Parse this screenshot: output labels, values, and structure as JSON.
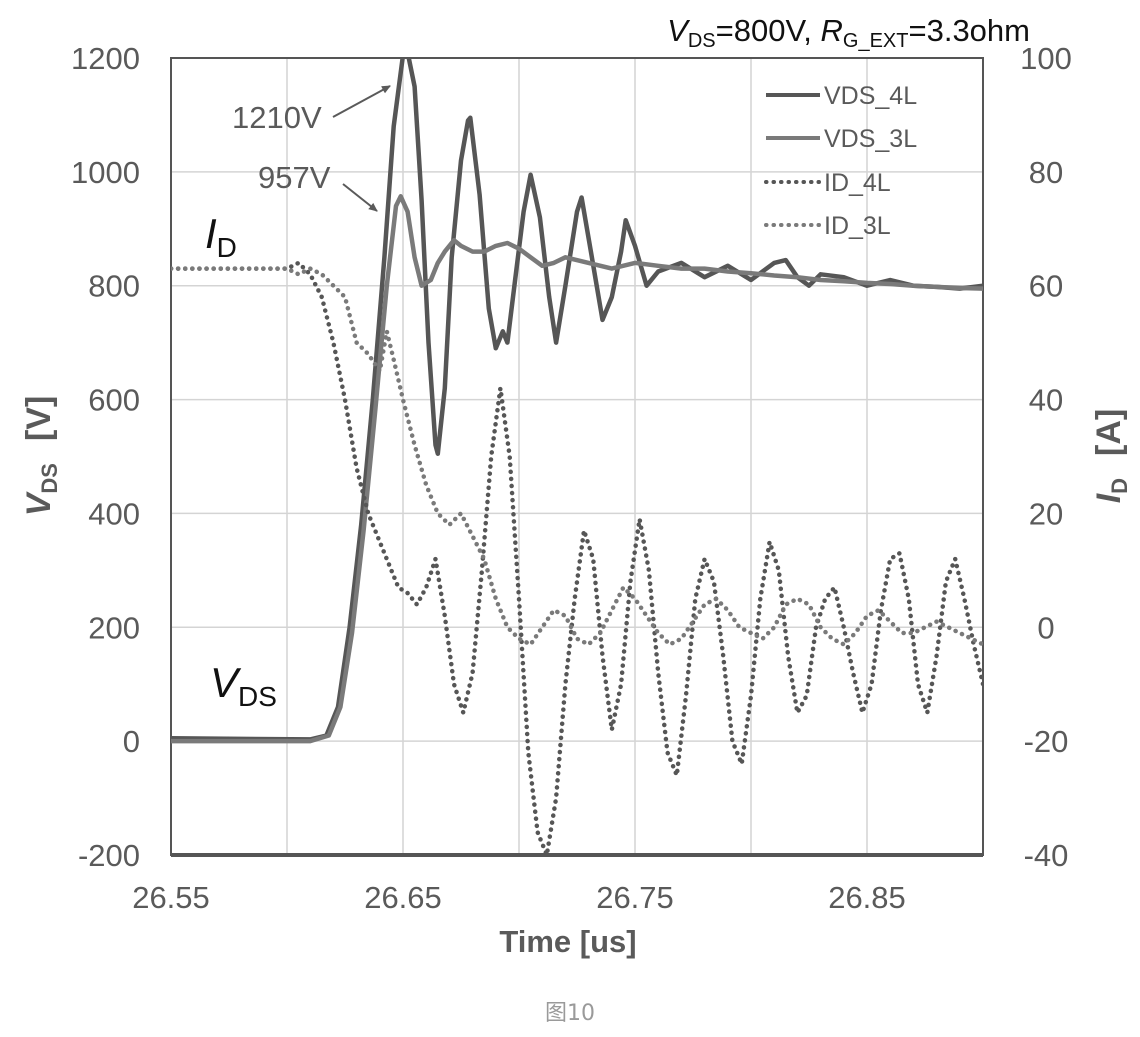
{
  "caption": "图10",
  "chart_data": {
    "type": "line",
    "title": {
      "vds_sym": "V",
      "vds_sub": "DS",
      "vds_val": "=800V, ",
      "rg_sym": "R",
      "rg_sub": "G_EXT",
      "rg_val": "=3.3ohm"
    },
    "xlabel": "Time [us]",
    "ylabel_left": {
      "sym": "V",
      "sub": "DS",
      "unit": "[V]"
    },
    "ylabel_right": {
      "sym": "I",
      "sub": "D",
      "unit": "[A]"
    },
    "xlim": [
      26.55,
      26.9
    ],
    "ylim_left": [
      -200,
      1200
    ],
    "ylim_right": [
      -40,
      100
    ],
    "x_ticks": [
      "26.55",
      "26.65",
      "26.75",
      "26.85"
    ],
    "x_tick_values": [
      26.55,
      26.65,
      26.75,
      26.85
    ],
    "x_grid": [
      26.55,
      26.6,
      26.65,
      26.7,
      26.75,
      26.8,
      26.85,
      26.9
    ],
    "y_ticks_left": [
      "-200",
      "0",
      "200",
      "400",
      "600",
      "800",
      "1000",
      "1200"
    ],
    "y_ticks_right": [
      "-40",
      "-20",
      "0",
      "20",
      "40",
      "60",
      "80",
      "100"
    ],
    "y_tick_values_left": [
      -200,
      0,
      200,
      400,
      600,
      800,
      1000,
      1200
    ],
    "grid": true,
    "legend_position": "top-right",
    "legend": [
      {
        "name": "VDS_4L",
        "style": "solid",
        "color": "#565656"
      },
      {
        "name": "VDS_3L",
        "style": "solid",
        "color": "#7a7a7a"
      },
      {
        "name": "ID_4L",
        "style": "dotted",
        "color": "#565656"
      },
      {
        "name": "ID_3L",
        "style": "dotted",
        "color": "#7a7a7a"
      }
    ],
    "annotations": [
      {
        "text": "1210V",
        "x": 26.651,
        "y": 1210
      },
      {
        "text": "957V",
        "x": 26.647,
        "y": 957
      }
    ],
    "curve_labels": {
      "id_sym": "I",
      "id_sub": "D",
      "vds_sym": "V",
      "vds_sub": "DS"
    },
    "series": [
      {
        "name": "VDS_4L",
        "axis": "left",
        "style": "solid",
        "color": "#565656",
        "points": [
          [
            26.55,
            5
          ],
          [
            26.61,
            3
          ],
          [
            26.617,
            10
          ],
          [
            26.622,
            60
          ],
          [
            26.627,
            200
          ],
          [
            26.632,
            380
          ],
          [
            26.637,
            600
          ],
          [
            26.642,
            850
          ],
          [
            26.646,
            1080
          ],
          [
            26.65,
            1205
          ],
          [
            26.652,
            1210
          ],
          [
            26.655,
            1150
          ],
          [
            26.658,
            950
          ],
          [
            26.661,
            700
          ],
          [
            26.664,
            520
          ],
          [
            26.665,
            505
          ],
          [
            26.668,
            620
          ],
          [
            26.671,
            850
          ],
          [
            26.675,
            1020
          ],
          [
            26.678,
            1090
          ],
          [
            26.679,
            1095
          ],
          [
            26.683,
            960
          ],
          [
            26.687,
            760
          ],
          [
            26.69,
            690
          ],
          [
            26.693,
            720
          ],
          [
            26.695,
            700
          ],
          [
            26.698,
            800
          ],
          [
            26.702,
            930
          ],
          [
            26.705,
            995
          ],
          [
            26.709,
            920
          ],
          [
            26.713,
            780
          ],
          [
            26.716,
            700
          ],
          [
            26.72,
            800
          ],
          [
            26.725,
            930
          ],
          [
            26.727,
            955
          ],
          [
            26.731,
            860
          ],
          [
            26.736,
            740
          ],
          [
            26.74,
            780
          ],
          [
            26.744,
            860
          ],
          [
            26.746,
            915
          ],
          [
            26.75,
            870
          ],
          [
            26.755,
            800
          ],
          [
            26.76,
            825
          ],
          [
            26.77,
            840
          ],
          [
            26.78,
            815
          ],
          [
            26.79,
            835
          ],
          [
            26.8,
            810
          ],
          [
            26.81,
            840
          ],
          [
            26.815,
            845
          ],
          [
            26.82,
            815
          ],
          [
            26.825,
            800
          ],
          [
            26.83,
            820
          ],
          [
            26.84,
            815
          ],
          [
            26.85,
            800
          ],
          [
            26.86,
            810
          ],
          [
            26.87,
            800
          ],
          [
            26.88,
            798
          ],
          [
            26.89,
            795
          ],
          [
            26.9,
            800
          ]
        ]
      },
      {
        "name": "VDS_3L",
        "axis": "left",
        "style": "solid",
        "color": "#7a7a7a",
        "points": [
          [
            26.55,
            0
          ],
          [
            26.61,
            0
          ],
          [
            26.618,
            10
          ],
          [
            26.623,
            60
          ],
          [
            26.628,
            190
          ],
          [
            26.633,
            370
          ],
          [
            26.638,
            580
          ],
          [
            26.643,
            800
          ],
          [
            26.647,
            940
          ],
          [
            26.649,
            957
          ],
          [
            26.652,
            930
          ],
          [
            26.655,
            850
          ],
          [
            26.658,
            800
          ],
          [
            26.662,
            810
          ],
          [
            26.665,
            840
          ],
          [
            26.668,
            860
          ],
          [
            26.672,
            880
          ],
          [
            26.675,
            870
          ],
          [
            26.68,
            860
          ],
          [
            26.685,
            860
          ],
          [
            26.69,
            870
          ],
          [
            26.695,
            875
          ],
          [
            26.7,
            865
          ],
          [
            26.705,
            850
          ],
          [
            26.71,
            835
          ],
          [
            26.715,
            840
          ],
          [
            26.72,
            850
          ],
          [
            26.73,
            840
          ],
          [
            26.74,
            830
          ],
          [
            26.75,
            840
          ],
          [
            26.76,
            835
          ],
          [
            26.77,
            830
          ],
          [
            26.78,
            830
          ],
          [
            26.79,
            825
          ],
          [
            26.8,
            822
          ],
          [
            26.81,
            818
          ],
          [
            26.82,
            815
          ],
          [
            26.83,
            810
          ],
          [
            26.84,
            808
          ],
          [
            26.85,
            805
          ],
          [
            26.86,
            803
          ],
          [
            26.87,
            800
          ],
          [
            26.88,
            798
          ],
          [
            26.89,
            796
          ],
          [
            26.9,
            795
          ]
        ]
      },
      {
        "name": "ID_4L",
        "axis": "right",
        "style": "dotted",
        "color": "#565656",
        "points": [
          [
            26.55,
            63
          ],
          [
            26.6,
            63
          ],
          [
            26.605,
            64
          ],
          [
            26.61,
            62
          ],
          [
            26.615,
            58
          ],
          [
            26.62,
            50
          ],
          [
            26.625,
            40
          ],
          [
            26.63,
            28
          ],
          [
            26.635,
            20
          ],
          [
            26.64,
            15
          ],
          [
            26.645,
            10
          ],
          [
            26.648,
            7
          ],
          [
            26.652,
            6
          ],
          [
            26.656,
            4
          ],
          [
            26.66,
            7
          ],
          [
            26.664,
            12
          ],
          [
            26.668,
            2
          ],
          [
            26.672,
            -10
          ],
          [
            26.676,
            -15
          ],
          [
            26.68,
            -8
          ],
          [
            26.684,
            10
          ],
          [
            26.688,
            30
          ],
          [
            26.692,
            42
          ],
          [
            26.696,
            30
          ],
          [
            26.7,
            5
          ],
          [
            26.704,
            -22
          ],
          [
            26.708,
            -36
          ],
          [
            26.712,
            -40
          ],
          [
            26.716,
            -30
          ],
          [
            26.72,
            -10
          ],
          [
            26.724,
            5
          ],
          [
            26.728,
            17
          ],
          [
            26.732,
            12
          ],
          [
            26.736,
            -5
          ],
          [
            26.74,
            -18
          ],
          [
            26.744,
            -10
          ],
          [
            26.748,
            8
          ],
          [
            26.752,
            19
          ],
          [
            26.756,
            10
          ],
          [
            26.76,
            -8
          ],
          [
            26.764,
            -22
          ],
          [
            26.768,
            -26
          ],
          [
            26.772,
            -12
          ],
          [
            26.776,
            5
          ],
          [
            26.78,
            12
          ],
          [
            26.784,
            8
          ],
          [
            26.788,
            -5
          ],
          [
            26.792,
            -20
          ],
          [
            26.796,
            -24
          ],
          [
            26.8,
            -12
          ],
          [
            26.804,
            5
          ],
          [
            26.808,
            15
          ],
          [
            26.812,
            10
          ],
          [
            26.816,
            -5
          ],
          [
            26.82,
            -15
          ],
          [
            26.824,
            -12
          ],
          [
            26.828,
            0
          ],
          [
            26.832,
            5
          ],
          [
            26.836,
            7
          ],
          [
            26.84,
            0
          ],
          [
            26.844,
            -8
          ],
          [
            26.848,
            -15
          ],
          [
            26.852,
            -10
          ],
          [
            26.856,
            3
          ],
          [
            26.86,
            12
          ],
          [
            26.864,
            13
          ],
          [
            26.868,
            5
          ],
          [
            26.872,
            -10
          ],
          [
            26.876,
            -15
          ],
          [
            26.88,
            -5
          ],
          [
            26.884,
            8
          ],
          [
            26.888,
            12
          ],
          [
            26.892,
            5
          ],
          [
            26.896,
            -3
          ],
          [
            26.9,
            -10
          ]
        ]
      },
      {
        "name": "ID_3L",
        "axis": "right",
        "style": "dotted",
        "color": "#7a7a7a",
        "points": [
          [
            26.55,
            63
          ],
          [
            26.6,
            63
          ],
          [
            26.605,
            62
          ],
          [
            26.61,
            63
          ],
          [
            26.615,
            62
          ],
          [
            26.62,
            60
          ],
          [
            26.625,
            58
          ],
          [
            26.63,
            50
          ],
          [
            26.635,
            48
          ],
          [
            26.64,
            45
          ],
          [
            26.643,
            52
          ],
          [
            26.646,
            47
          ],
          [
            26.65,
            40
          ],
          [
            26.655,
            32
          ],
          [
            26.66,
            25
          ],
          [
            26.665,
            20
          ],
          [
            26.67,
            18
          ],
          [
            26.675,
            20
          ],
          [
            26.68,
            16
          ],
          [
            26.685,
            12
          ],
          [
            26.69,
            5
          ],
          [
            26.695,
            0
          ],
          [
            26.7,
            -2
          ],
          [
            26.705,
            -3
          ],
          [
            26.71,
            0
          ],
          [
            26.715,
            3
          ],
          [
            26.72,
            2
          ],
          [
            26.725,
            -2
          ],
          [
            26.73,
            -3
          ],
          [
            26.735,
            -1
          ],
          [
            26.74,
            3
          ],
          [
            26.745,
            7
          ],
          [
            26.75,
            5
          ],
          [
            26.755,
            2
          ],
          [
            26.76,
            -1
          ],
          [
            26.765,
            -3
          ],
          [
            26.77,
            -2
          ],
          [
            26.775,
            1
          ],
          [
            26.78,
            4
          ],
          [
            26.785,
            5
          ],
          [
            26.79,
            3
          ],
          [
            26.795,
            0
          ],
          [
            26.8,
            -1
          ],
          [
            26.805,
            -2
          ],
          [
            26.81,
            0
          ],
          [
            26.815,
            4
          ],
          [
            26.82,
            5
          ],
          [
            26.825,
            4
          ],
          [
            26.83,
            0
          ],
          [
            26.835,
            -2
          ],
          [
            26.84,
            -3
          ],
          [
            26.845,
            -1
          ],
          [
            26.85,
            2
          ],
          [
            26.855,
            3
          ],
          [
            26.86,
            1
          ],
          [
            26.865,
            -1
          ],
          [
            26.87,
            -1
          ],
          [
            26.875,
            0
          ],
          [
            26.88,
            1
          ],
          [
            26.885,
            0
          ],
          [
            26.89,
            -1
          ],
          [
            26.895,
            -2
          ],
          [
            26.9,
            -3
          ]
        ]
      }
    ]
  }
}
